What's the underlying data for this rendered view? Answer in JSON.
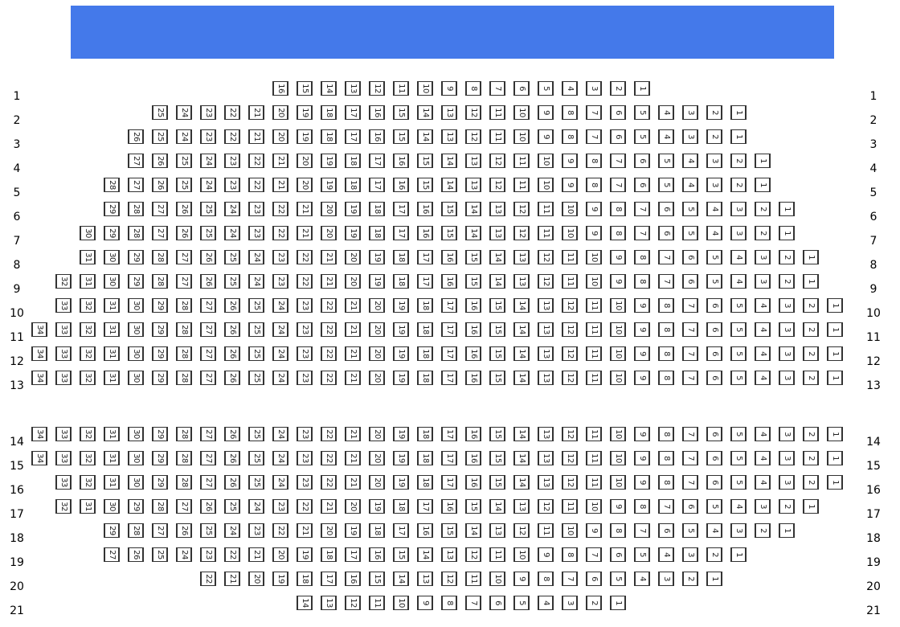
{
  "stage": {
    "color": "#4479ea"
  },
  "rows": [
    {
      "label": "1",
      "seats": 16
    },
    {
      "label": "2",
      "seats": 25
    },
    {
      "label": "3",
      "seats": 26
    },
    {
      "label": "4",
      "seats": 27
    },
    {
      "label": "5",
      "seats": 28
    },
    {
      "label": "6",
      "seats": 29
    },
    {
      "label": "7",
      "seats": 30
    },
    {
      "label": "8",
      "seats": 31
    },
    {
      "label": "9",
      "seats": 32
    },
    {
      "label": "10",
      "seats": 33
    },
    {
      "label": "11",
      "seats": 34
    },
    {
      "label": "12",
      "seats": 34
    },
    {
      "label": "13",
      "seats": 34
    },
    {
      "label": "14",
      "seats": 34
    },
    {
      "label": "15",
      "seats": 34
    },
    {
      "label": "16",
      "seats": 33
    },
    {
      "label": "17",
      "seats": 32
    },
    {
      "label": "18",
      "seats": 29
    },
    {
      "label": "19",
      "seats": 27
    },
    {
      "label": "20",
      "seats": 22
    },
    {
      "label": "21",
      "seats": 14
    }
  ]
}
